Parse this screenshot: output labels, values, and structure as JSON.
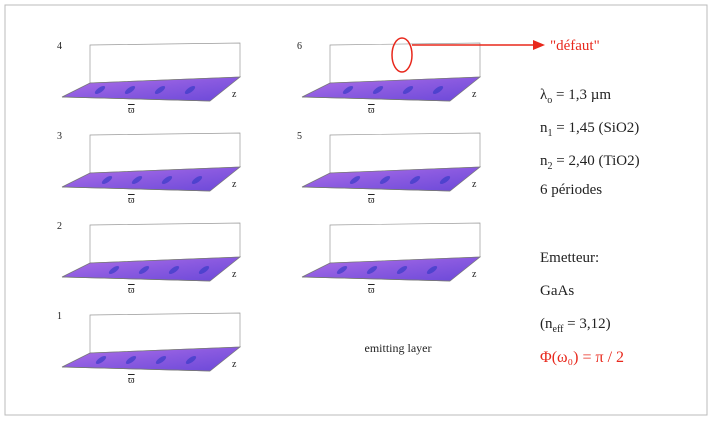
{
  "panels": [
    {
      "label": "4",
      "x_label": "ϖ",
      "z_label": "z"
    },
    {
      "label": "3",
      "x_label": "ϖ",
      "z_label": "z"
    },
    {
      "label": "2",
      "x_label": "ϖ",
      "z_label": "z"
    },
    {
      "label": "1",
      "x_label": "ϖ",
      "z_label": "z"
    },
    {
      "label": "6",
      "x_label": "ϖ",
      "z_label": "z"
    },
    {
      "label": "5",
      "x_label": "ϖ",
      "z_label": "z"
    },
    {
      "label": "",
      "x_label": "ϖ",
      "z_label": "z"
    }
  ],
  "caption": "emitting layer",
  "annotation": "\"défaut\"",
  "parameters": [
    {
      "symbol": "λ",
      "sub": "o",
      "text": " = 1,3 µm"
    },
    {
      "symbol": "n",
      "sub": "1",
      "text": " = 1,45 (SiO2)"
    },
    {
      "symbol": "n",
      "sub": "2",
      "text": " = 2,40 (TiO2)"
    },
    {
      "symbol": "",
      "sub": "",
      "text": "6 périodes"
    }
  ],
  "emitter": {
    "title": "Emetteur:",
    "material": "GaAs",
    "index_open": "(n",
    "index_sub": "eff",
    "index_rest": " = 3,12)",
    "phase": "Φ(ω₀) = π / 2"
  }
}
